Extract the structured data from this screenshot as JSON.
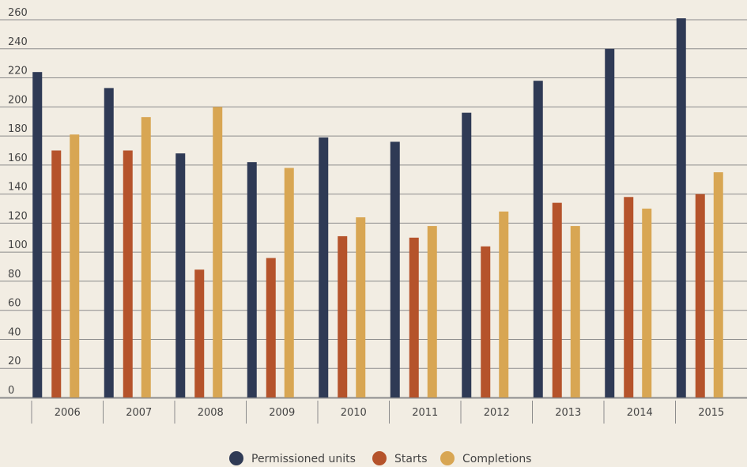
{
  "chart_data": {
    "type": "bar",
    "title": "",
    "xlabel": "",
    "ylabel": "",
    "categories": [
      "2006",
      "2007",
      "2008",
      "2009",
      "2010",
      "2011",
      "2012",
      "2013",
      "2014",
      "2015"
    ],
    "series": [
      {
        "name": "Permissioned units",
        "color": "#2f3a55",
        "values": [
          224,
          213,
          168,
          162,
          179,
          176,
          196,
          218,
          240,
          261
        ]
      },
      {
        "name": "Starts",
        "color": "#b5532b",
        "values": [
          170,
          170,
          88,
          96,
          111,
          110,
          104,
          134,
          138,
          140
        ]
      },
      {
        "name": "Completions",
        "color": "#d8a653",
        "values": [
          181,
          193,
          200,
          158,
          124,
          118,
          128,
          118,
          130,
          155
        ]
      }
    ],
    "y_ticks": [
      0,
      20,
      40,
      60,
      80,
      100,
      120,
      140,
      160,
      180,
      200,
      220,
      240,
      260
    ],
    "ylim": [
      0,
      260
    ],
    "grid": true,
    "legend_position": "bottom-center"
  }
}
